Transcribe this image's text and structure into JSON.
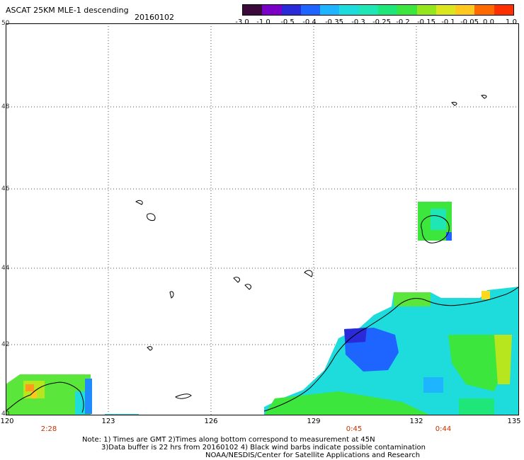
{
  "header": {
    "title": "ASCAT 25KM MLE-1 descending",
    "date": "20160102"
  },
  "colorbar": {
    "colors": [
      "#3a0a3a",
      "#7a00c8",
      "#2a2ad8",
      "#1e64ff",
      "#1eb4ff",
      "#1edcdc",
      "#1ee6b4",
      "#1ee678",
      "#3ce63c",
      "#96e61e",
      "#dce61e",
      "#ffc81e",
      "#ff6a00",
      "#ff3000"
    ],
    "labels": [
      "-3.0",
      "-1.0",
      "-0.5",
      "-0.4",
      "-0.35",
      "-0.3",
      "-0.25",
      "-0.2",
      "-0.15",
      "-0.1",
      "-0.05",
      "0.0",
      "1.0"
    ]
  },
  "map": {
    "lat_labels": [
      "50",
      "48",
      "46",
      "44",
      "42",
      "40"
    ],
    "lon_labels": [
      "120",
      "123",
      "126",
      "129",
      "132",
      "135"
    ],
    "pass_times": [
      "2:28",
      "0:45",
      "0:44"
    ]
  },
  "notes": {
    "line1": "Note: 1) Times are GMT 2)Times along bottom correspond to measurement at 45N",
    "line2": "3)Data buffer is 22 hrs from 20160102 4) Black wind barbs indicate possible contamination",
    "line3": "NOAA/NESDIS/Center for Satellite Applications and Research"
  }
}
